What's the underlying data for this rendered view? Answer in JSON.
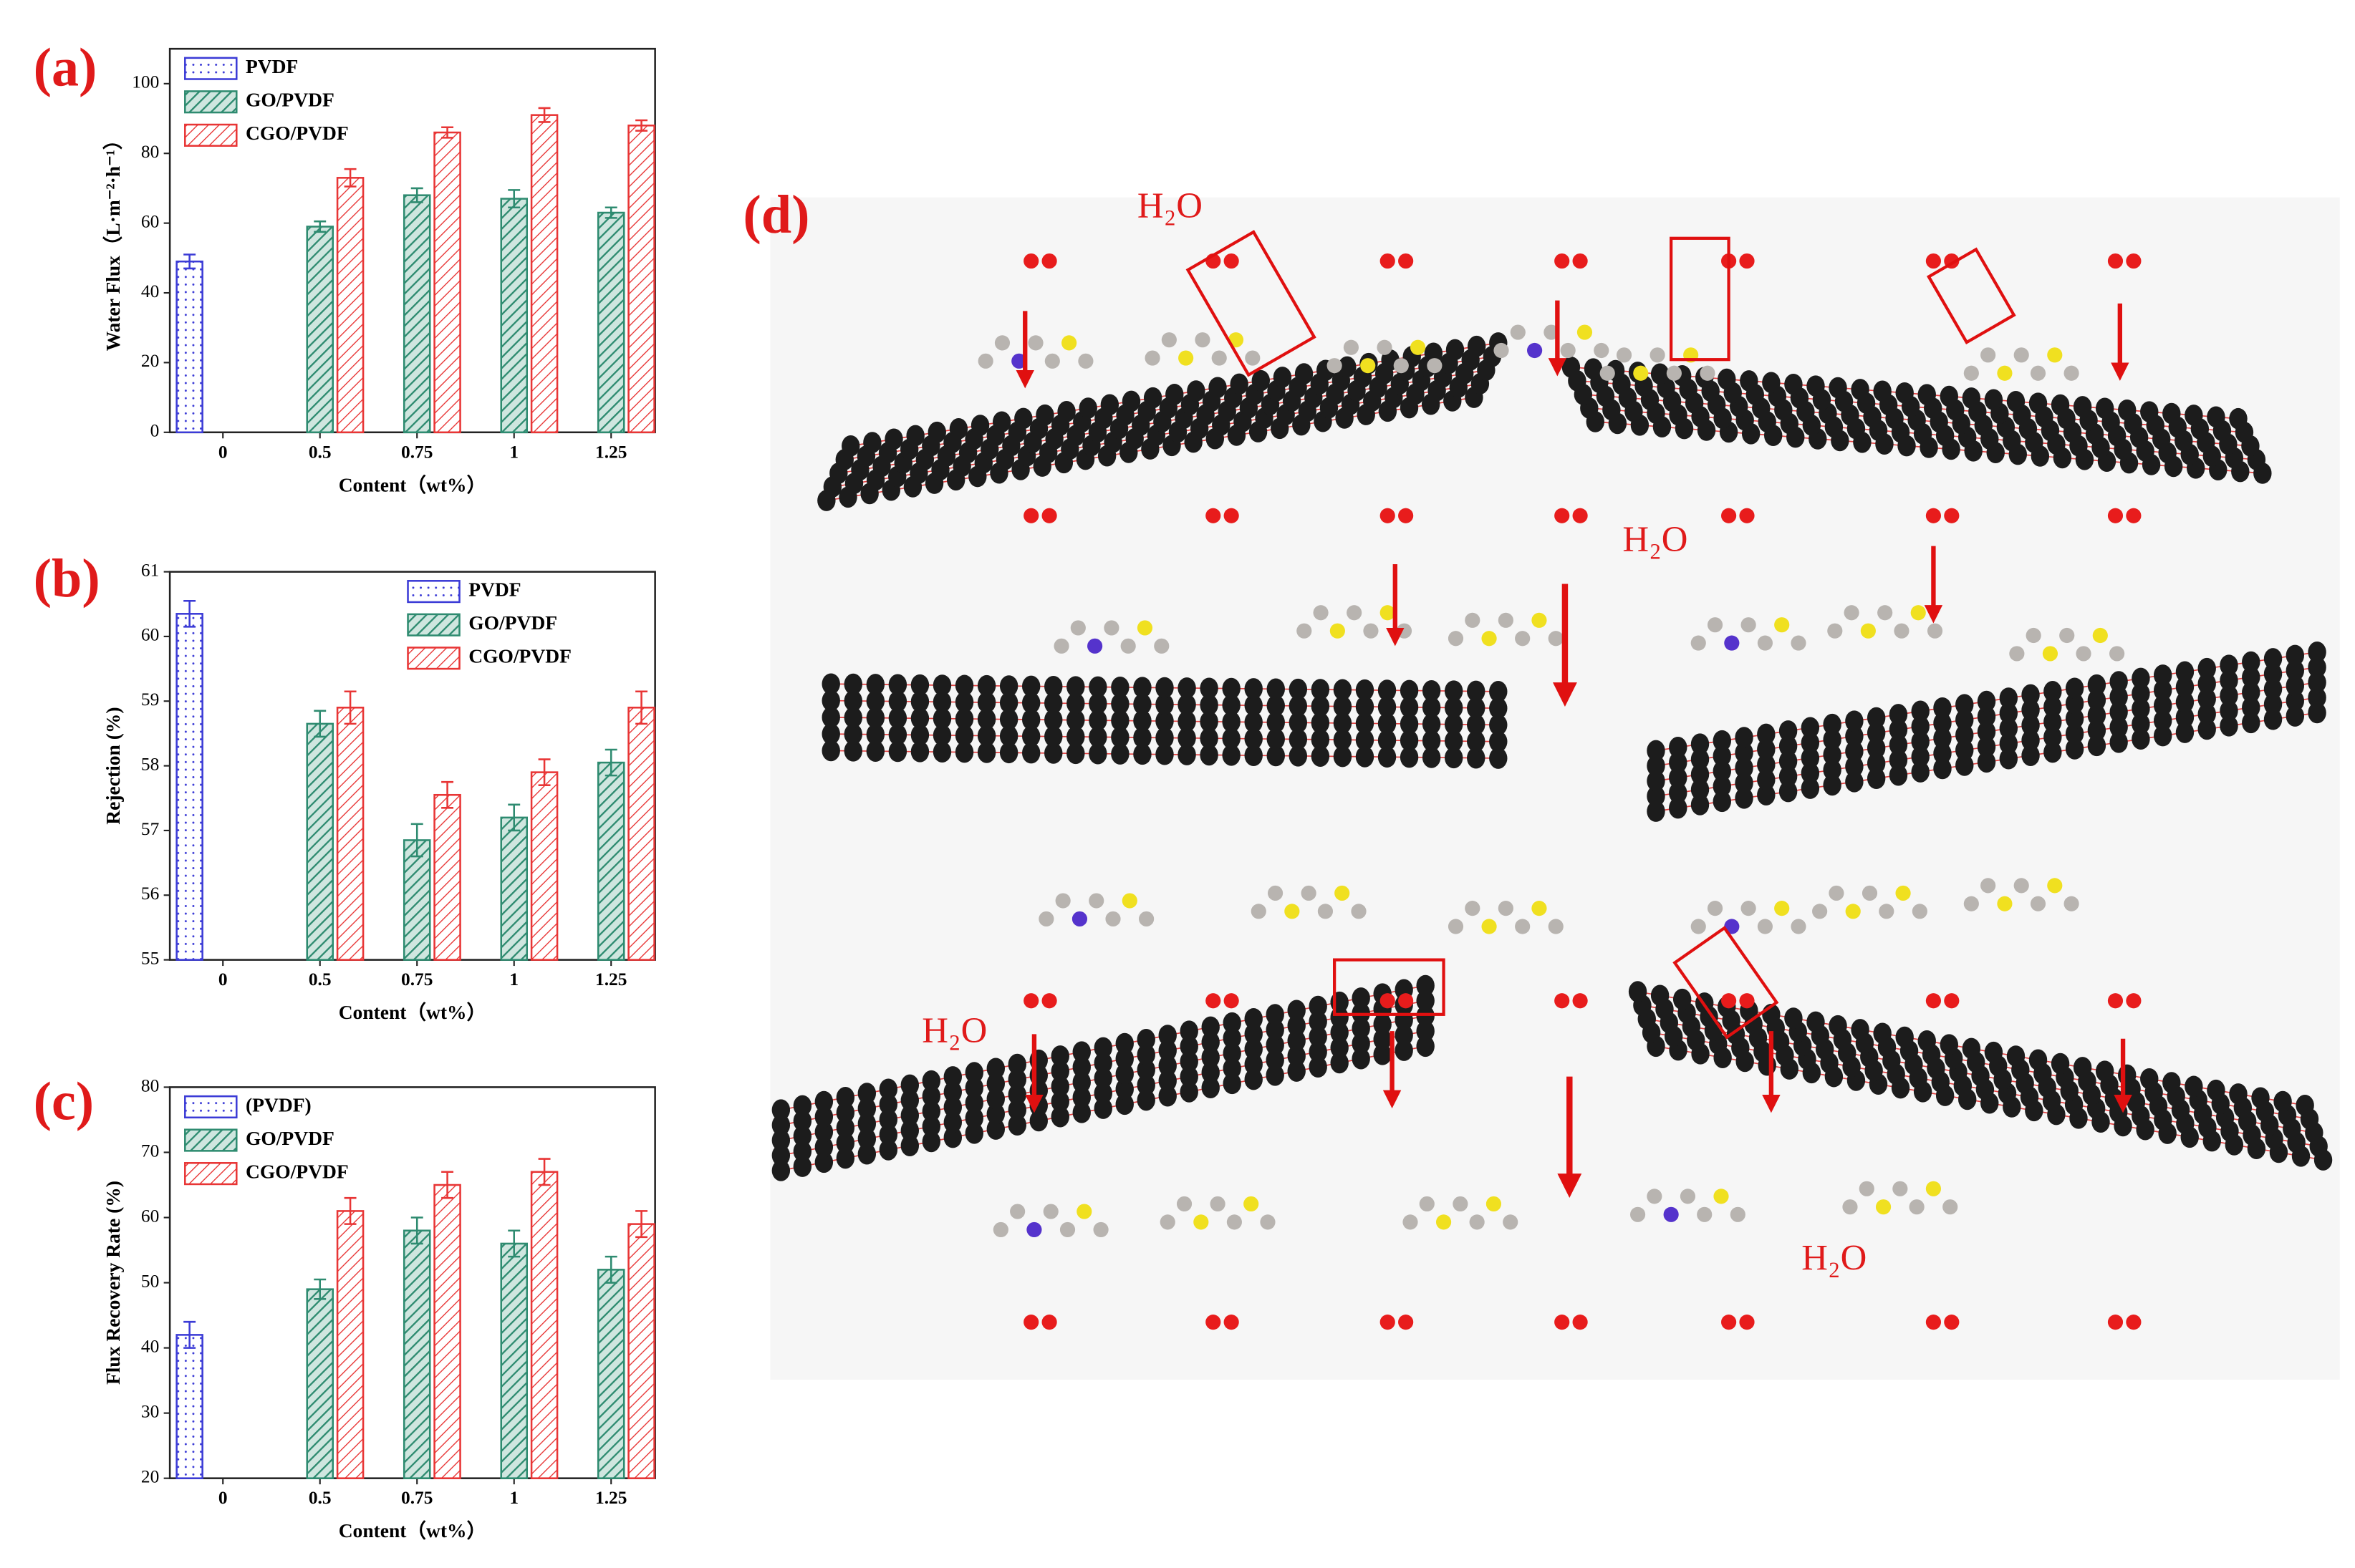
{
  "chart_data": [
    {
      "type": "bar",
      "panel_label": "(a)",
      "x_label": "Content（wt%）",
      "y_label": "Water Flux（L·m⁻²·h⁻¹）",
      "categories": [
        "0",
        "0.5",
        "0.75",
        "1",
        "1.25"
      ],
      "series": [
        {
          "name": "PVDF",
          "color": "#3b3bd6",
          "values": [
            49,
            null,
            null,
            null,
            null
          ],
          "errors": [
            2,
            null,
            null,
            null,
            null
          ]
        },
        {
          "name": "GO/PVDF",
          "color": "#2e8b70",
          "values": [
            null,
            59,
            68,
            67,
            63
          ],
          "errors": [
            null,
            1.5,
            2,
            2.5,
            1.5
          ]
        },
        {
          "name": "CGO/PVDF",
          "color": "#e83535",
          "values": [
            null,
            73,
            86,
            91,
            88
          ],
          "errors": [
            null,
            2.5,
            1.5,
            2,
            1.5
          ]
        }
      ],
      "ylim": [
        0,
        110
      ],
      "yticks": [
        0,
        20,
        40,
        60,
        80,
        100
      ],
      "legend": "upper left"
    },
    {
      "type": "bar",
      "panel_label": "(b)",
      "x_label": "Content（wt%）",
      "y_label": "Rejection (%)",
      "categories": [
        "0",
        "0.5",
        "0.75",
        "1",
        "1.25"
      ],
      "series": [
        {
          "name": "PVDF",
          "color": "#3b3bd6",
          "values": [
            60.35,
            null,
            null,
            null,
            null
          ],
          "errors": [
            0.2,
            null,
            null,
            null,
            null
          ]
        },
        {
          "name": "GO/PVDF",
          "color": "#2e8b70",
          "values": [
            null,
            58.65,
            56.85,
            57.2,
            58.05
          ],
          "errors": [
            null,
            0.2,
            0.25,
            0.2,
            0.2
          ]
        },
        {
          "name": "CGO/PVDF",
          "color": "#e83535",
          "values": [
            null,
            58.9,
            57.55,
            57.9,
            58.9
          ],
          "errors": [
            null,
            0.25,
            0.2,
            0.2,
            0.25
          ]
        }
      ],
      "ylim": [
        55,
        61
      ],
      "yticks": [
        55,
        56,
        57,
        58,
        59,
        60,
        61
      ],
      "legend": "upper right"
    },
    {
      "type": "bar",
      "panel_label": "(c)",
      "x_label": "Content（wt%）",
      "y_label": "Flux Recovery Rate (%)",
      "categories": [
        "0",
        "0.5",
        "0.75",
        "1",
        "1.25"
      ],
      "series": [
        {
          "name": "(PVDF)",
          "color": "#3b3bd6",
          "values": [
            42,
            null,
            null,
            null,
            null
          ],
          "errors": [
            2,
            null,
            null,
            null,
            null
          ]
        },
        {
          "name": "GO/PVDF",
          "color": "#2e8b70",
          "values": [
            null,
            49,
            58,
            56,
            52
          ],
          "errors": [
            null,
            1.5,
            2,
            2,
            2
          ]
        },
        {
          "name": "CGO/PVDF",
          "color": "#e83535",
          "values": [
            null,
            61,
            65,
            67,
            59
          ],
          "errors": [
            null,
            2,
            2,
            2,
            2
          ]
        }
      ],
      "ylim": [
        20,
        80
      ],
      "yticks": [
        20,
        30,
        40,
        50,
        60,
        70,
        80
      ],
      "legend": "upper left"
    }
  ],
  "diagram": {
    "label": "(d)",
    "annotations": [
      "H₂O",
      "H₂O",
      "H₂O",
      "H₂O"
    ]
  }
}
